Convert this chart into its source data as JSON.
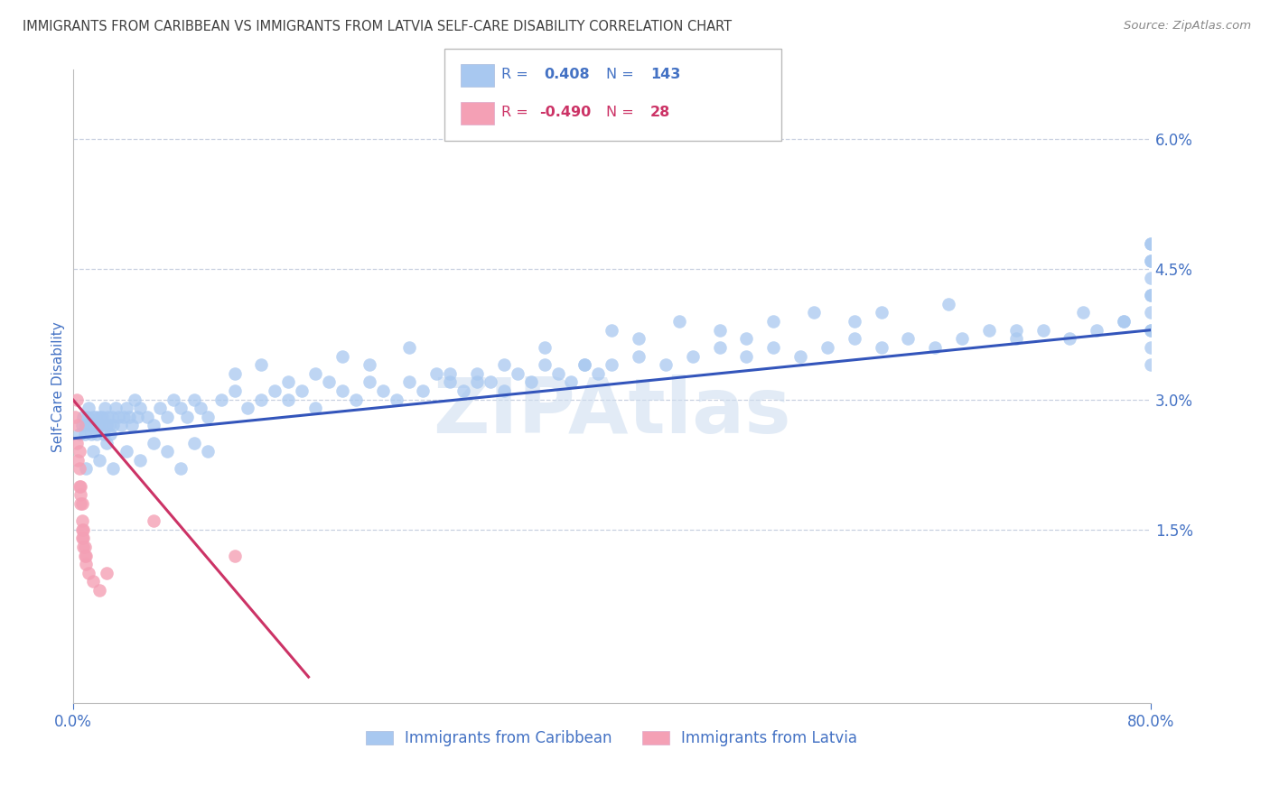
{
  "title": "IMMIGRANTS FROM CARIBBEAN VS IMMIGRANTS FROM LATVIA SELF-CARE DISABILITY CORRELATION CHART",
  "source": "Source: ZipAtlas.com",
  "ylabel": "Self-Care Disability",
  "y_tick_labels": [
    "1.5%",
    "3.0%",
    "4.5%",
    "6.0%"
  ],
  "y_tick_values": [
    0.015,
    0.03,
    0.045,
    0.06
  ],
  "xlim": [
    0.0,
    0.8
  ],
  "ylim": [
    -0.005,
    0.068
  ],
  "legend_label1": "Immigrants from Caribbean",
  "legend_label2": "Immigrants from Latvia",
  "blue_color": "#a8c8f0",
  "pink_color": "#f4a0b5",
  "blue_line_color": "#3355bb",
  "pink_line_color": "#cc3366",
  "title_color": "#404040",
  "source_color": "#888888",
  "axis_color": "#4472c4",
  "grid_color": "#c8d0e0",
  "watermark_color": "#d0dff0",
  "blue_trend_x": [
    0.0,
    0.8
  ],
  "blue_trend_y": [
    0.0255,
    0.038
  ],
  "pink_trend_x": [
    0.0,
    0.175
  ],
  "pink_trend_y": [
    0.03,
    -0.002
  ],
  "blue_x": [
    0.005,
    0.007,
    0.008,
    0.009,
    0.01,
    0.011,
    0.012,
    0.013,
    0.014,
    0.015,
    0.016,
    0.017,
    0.018,
    0.019,
    0.02,
    0.021,
    0.022,
    0.023,
    0.024,
    0.025,
    0.026,
    0.027,
    0.028,
    0.029,
    0.03,
    0.032,
    0.034,
    0.036,
    0.038,
    0.04,
    0.042,
    0.044,
    0.046,
    0.048,
    0.05,
    0.055,
    0.06,
    0.065,
    0.07,
    0.075,
    0.08,
    0.085,
    0.09,
    0.095,
    0.1,
    0.11,
    0.12,
    0.13,
    0.14,
    0.15,
    0.16,
    0.17,
    0.18,
    0.19,
    0.2,
    0.21,
    0.22,
    0.23,
    0.24,
    0.25,
    0.26,
    0.27,
    0.28,
    0.29,
    0.3,
    0.31,
    0.32,
    0.33,
    0.34,
    0.35,
    0.36,
    0.37,
    0.38,
    0.39,
    0.4,
    0.42,
    0.44,
    0.46,
    0.48,
    0.5,
    0.52,
    0.54,
    0.56,
    0.58,
    0.6,
    0.62,
    0.64,
    0.66,
    0.68,
    0.7,
    0.72,
    0.74,
    0.76,
    0.78,
    0.8,
    0.01,
    0.015,
    0.02,
    0.025,
    0.03,
    0.04,
    0.05,
    0.06,
    0.07,
    0.08,
    0.09,
    0.1,
    0.12,
    0.14,
    0.16,
    0.18,
    0.2,
    0.22,
    0.25,
    0.28,
    0.3,
    0.32,
    0.35,
    0.38,
    0.4,
    0.42,
    0.45,
    0.48,
    0.5,
    0.52,
    0.55,
    0.58,
    0.6,
    0.65,
    0.7,
    0.75,
    0.78,
    0.8,
    0.8,
    0.8,
    0.8,
    0.8,
    0.8,
    0.8,
    0.8,
    0.8,
    0.8,
    0.8
  ],
  "blue_y": [
    0.026,
    0.027,
    0.028,
    0.026,
    0.027,
    0.028,
    0.029,
    0.027,
    0.026,
    0.028,
    0.027,
    0.028,
    0.026,
    0.027,
    0.028,
    0.027,
    0.028,
    0.026,
    0.029,
    0.027,
    0.028,
    0.027,
    0.026,
    0.028,
    0.027,
    0.029,
    0.028,
    0.027,
    0.028,
    0.029,
    0.028,
    0.027,
    0.03,
    0.028,
    0.029,
    0.028,
    0.027,
    0.029,
    0.028,
    0.03,
    0.029,
    0.028,
    0.03,
    0.029,
    0.028,
    0.03,
    0.031,
    0.029,
    0.03,
    0.031,
    0.03,
    0.031,
    0.029,
    0.032,
    0.031,
    0.03,
    0.032,
    0.031,
    0.03,
    0.032,
    0.031,
    0.033,
    0.032,
    0.031,
    0.033,
    0.032,
    0.031,
    0.033,
    0.032,
    0.034,
    0.033,
    0.032,
    0.034,
    0.033,
    0.034,
    0.035,
    0.034,
    0.035,
    0.036,
    0.035,
    0.036,
    0.035,
    0.036,
    0.037,
    0.036,
    0.037,
    0.036,
    0.037,
    0.038,
    0.037,
    0.038,
    0.037,
    0.038,
    0.039,
    0.038,
    0.022,
    0.024,
    0.023,
    0.025,
    0.022,
    0.024,
    0.023,
    0.025,
    0.024,
    0.022,
    0.025,
    0.024,
    0.033,
    0.034,
    0.032,
    0.033,
    0.035,
    0.034,
    0.036,
    0.033,
    0.032,
    0.034,
    0.036,
    0.034,
    0.038,
    0.037,
    0.039,
    0.038,
    0.037,
    0.039,
    0.04,
    0.039,
    0.04,
    0.041,
    0.038,
    0.04,
    0.039,
    0.034,
    0.036,
    0.038,
    0.04,
    0.042,
    0.044,
    0.046,
    0.048,
    0.042,
    0.046,
    0.048
  ],
  "pink_x": [
    0.002,
    0.003,
    0.003,
    0.004,
    0.004,
    0.005,
    0.005,
    0.005,
    0.006,
    0.006,
    0.006,
    0.007,
    0.007,
    0.007,
    0.007,
    0.008,
    0.008,
    0.008,
    0.009,
    0.009,
    0.01,
    0.01,
    0.012,
    0.015,
    0.02,
    0.025,
    0.06,
    0.12
  ],
  "pink_y": [
    0.028,
    0.03,
    0.025,
    0.027,
    0.023,
    0.024,
    0.022,
    0.02,
    0.02,
    0.019,
    0.018,
    0.018,
    0.016,
    0.015,
    0.014,
    0.015,
    0.014,
    0.013,
    0.013,
    0.012,
    0.012,
    0.011,
    0.01,
    0.009,
    0.008,
    0.01,
    0.016,
    0.012
  ]
}
